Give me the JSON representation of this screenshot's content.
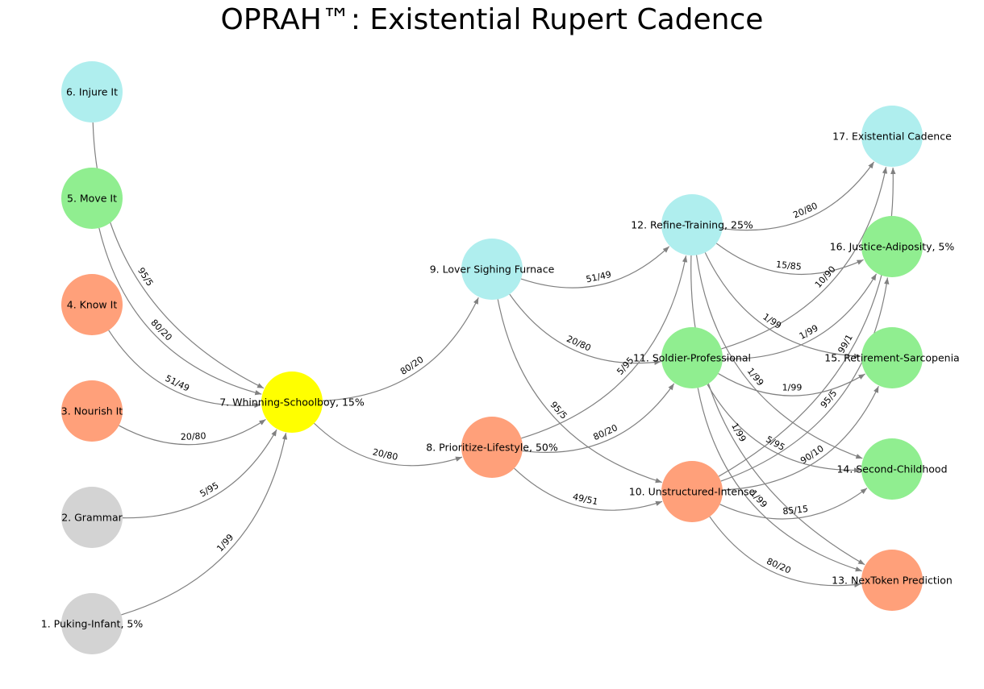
{
  "title": "OPRAH™: Existential Rupert Cadence",
  "colors": {
    "edge": "#808080",
    "gray": "#d3d3d3",
    "salmon": "#ffa07a",
    "green": "#90ee90",
    "cyan": "#afeeee",
    "yellow": "#ffff00"
  },
  "nodes": [
    {
      "id": 1,
      "label": "1. Puking-Infant, 5%",
      "color": "gray"
    },
    {
      "id": 2,
      "label": "2. Grammar",
      "color": "gray"
    },
    {
      "id": 3,
      "label": "3. Nourish It",
      "color": "salmon"
    },
    {
      "id": 4,
      "label": "4. Know It",
      "color": "salmon"
    },
    {
      "id": 5,
      "label": "5. Move It",
      "color": "green"
    },
    {
      "id": 6,
      "label": "6. Injure It",
      "color": "cyan"
    },
    {
      "id": 7,
      "label": "7. Whinning-Schoolboy, 15%",
      "color": "yellow"
    },
    {
      "id": 8,
      "label": "8. Prioritize-Lifestyle, 50%",
      "color": "salmon"
    },
    {
      "id": 9,
      "label": "9. Lover Sighing Furnace",
      "color": "cyan"
    },
    {
      "id": 10,
      "label": "10. Unstructured-Intense",
      "color": "salmon"
    },
    {
      "id": 11,
      "label": "11. Soldier-Professional",
      "color": "green"
    },
    {
      "id": 12,
      "label": "12. Refine-Training, 25%",
      "color": "cyan"
    },
    {
      "id": 13,
      "label": "13. NexToken Prediction",
      "color": "salmon"
    },
    {
      "id": 14,
      "label": "14. Second-Childhood",
      "color": "green"
    },
    {
      "id": 15,
      "label": "15. Retirement-Sarcopenia",
      "color": "green"
    },
    {
      "id": 16,
      "label": "16. Justice-Adiposity, 5%",
      "color": "green"
    },
    {
      "id": 17,
      "label": "17. Existential Cadence",
      "color": "cyan"
    }
  ],
  "edges": [
    {
      "from": 1,
      "to": 7,
      "label": "1/99"
    },
    {
      "from": 2,
      "to": 7,
      "label": "5/95"
    },
    {
      "from": 3,
      "to": 7,
      "label": "20/80"
    },
    {
      "from": 4,
      "to": 7,
      "label": "51/49"
    },
    {
      "from": 5,
      "to": 7,
      "label": "80/20"
    },
    {
      "from": 6,
      "to": 7,
      "label": "95/5"
    },
    {
      "from": 7,
      "to": 8,
      "label": "20/80"
    },
    {
      "from": 7,
      "to": 9,
      "label": "80/20"
    },
    {
      "from": 8,
      "to": 10,
      "label": "49/51"
    },
    {
      "from": 8,
      "to": 11,
      "label": "80/20"
    },
    {
      "from": 8,
      "to": 12,
      "label": "5/95"
    },
    {
      "from": 9,
      "to": 10,
      "label": "95/5"
    },
    {
      "from": 9,
      "to": 11,
      "label": "20/80"
    },
    {
      "from": 9,
      "to": 12,
      "label": "51/49"
    },
    {
      "from": 10,
      "to": 13,
      "label": "80/20"
    },
    {
      "from": 10,
      "to": 14,
      "label": "85/15"
    },
    {
      "from": 10,
      "to": 15,
      "label": "90/10"
    },
    {
      "from": 10,
      "to": 16,
      "label": "95/5"
    },
    {
      "from": 10,
      "to": 17,
      "label": "99/1"
    },
    {
      "from": 11,
      "to": 13,
      "label": "1/99"
    },
    {
      "from": 11,
      "to": 14,
      "label": "5/95"
    },
    {
      "from": 11,
      "to": 15,
      "label": "1/99"
    },
    {
      "from": 11,
      "to": 16,
      "label": "1/99"
    },
    {
      "from": 11,
      "to": 17,
      "label": "10/90"
    },
    {
      "from": 12,
      "to": 13,
      "label": "1/99"
    },
    {
      "from": 12,
      "to": 14,
      "label": "1/99"
    },
    {
      "from": 12,
      "to": 15,
      "label": "1/99"
    },
    {
      "from": 12,
      "to": 16,
      "label": "15/85"
    },
    {
      "from": 12,
      "to": 17,
      "label": "20/80"
    }
  ]
}
